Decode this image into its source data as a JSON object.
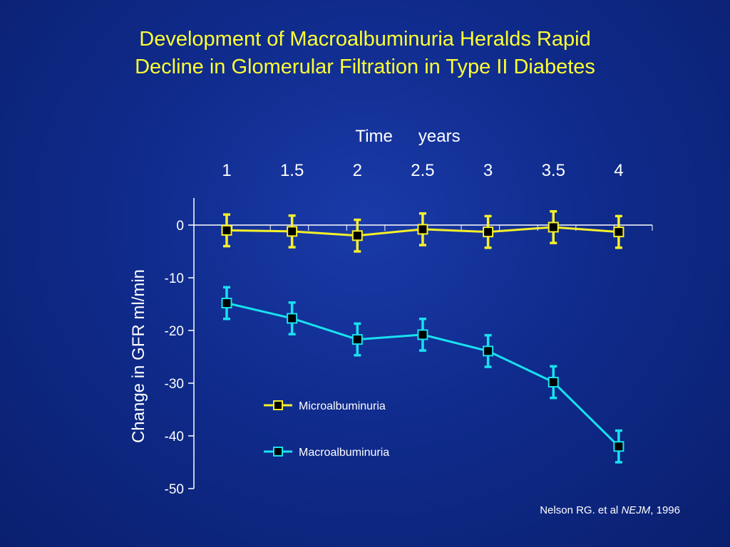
{
  "slide": {
    "title_line1": "Development of Macroalbuminuria Heralds Rapid",
    "title_line2": "Decline in Glomerular Filtration in Type II Diabetes",
    "citation": {
      "authors": "Nelson RG. et al ",
      "journal": "NEJM",
      "year": ", 1996"
    }
  },
  "colors": {
    "background": "#0f2b8c",
    "title": "#ffff33",
    "micro": "#f5f02a",
    "macro": "#19e1f0",
    "axis": "#ffffff",
    "marker": "#000000"
  },
  "chart_data": {
    "type": "line",
    "xlabel_parts": [
      "Time",
      "years"
    ],
    "ylabel": "Change in GFR ml/min",
    "x_axis_position": "top",
    "categories": [
      "1",
      "1.5",
      "2",
      "2.5",
      "3",
      "3.5",
      "4"
    ],
    "x": [
      1,
      1.5,
      2,
      2.5,
      3,
      3.5,
      4
    ],
    "ylim": [
      -50,
      0
    ],
    "yticks": [
      "0",
      "-10",
      "-20",
      "-30",
      "-40",
      "-50"
    ],
    "ytick_values": [
      0,
      -10,
      -20,
      -30,
      -40,
      -50
    ],
    "grid": false,
    "legend_position": "inside lower-left",
    "series": [
      {
        "name": "Microalbuminuria",
        "color": "#f5f02a",
        "values": [
          -1,
          -1.2,
          -2,
          -0.8,
          -1.3,
          -0.4,
          -1.3
        ],
        "err": [
          3,
          3,
          3,
          3,
          3,
          3,
          3
        ]
      },
      {
        "name": "Macroalbuminuria",
        "color": "#19e1f0",
        "values": [
          -14.8,
          -17.7,
          -21.7,
          -20.8,
          -23.9,
          -29.8,
          -42
        ],
        "err": [
          3,
          3,
          3,
          3,
          3,
          3,
          3
        ]
      }
    ]
  }
}
